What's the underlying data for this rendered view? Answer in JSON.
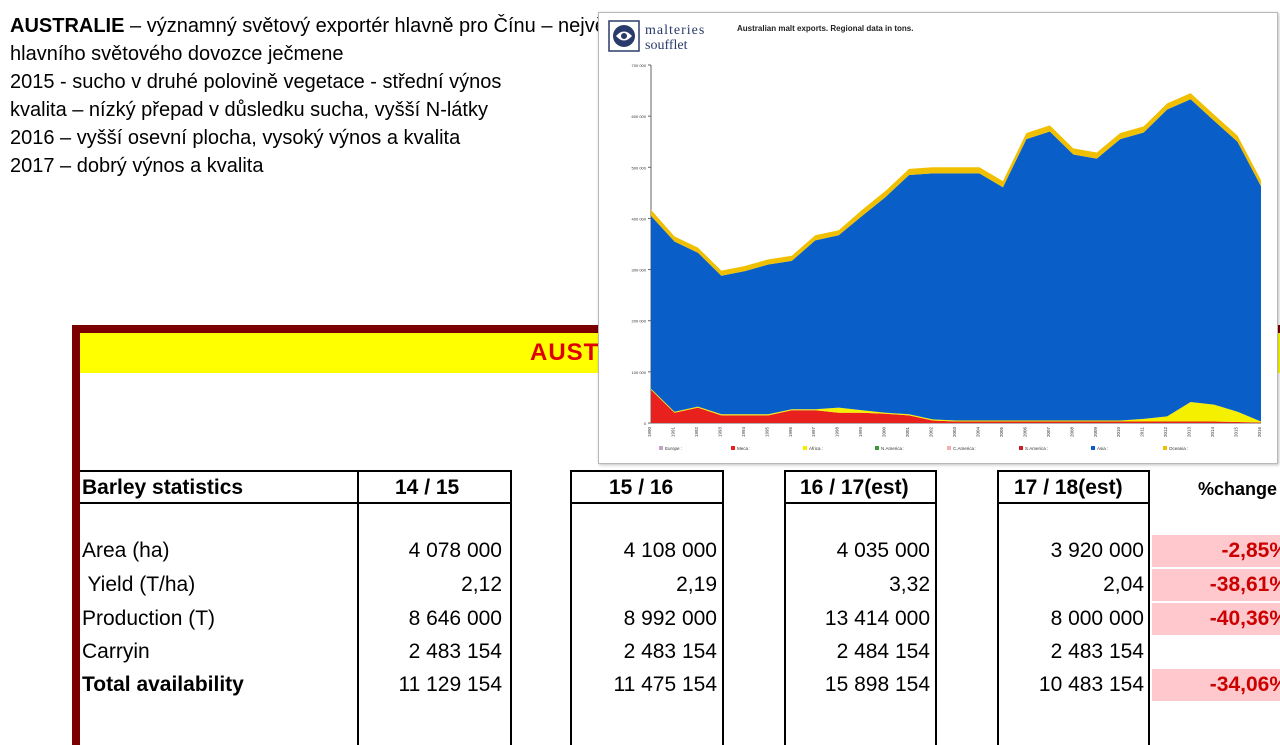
{
  "slide": {
    "line1_bold": "AUSTRALIE",
    "line1_rest": " – významný světový exportér hlavně pro Čínu – největšího",
    "line2": "hlavního světového dovozce ječmene",
    "line3": "2015 - sucho v druhé polovině vegetace - střední výnos",
    "line4": "kvalita – nízký přepad v důsledku sucha, vyšší N-látky",
    "line5": "2016 – vyšší osevní plocha, vysoký výnos a kvalita",
    "line6": "2017 – dobrý výnos a kvalita"
  },
  "table": {
    "title": "AUSTRALIE",
    "headers": [
      "Barley statistics",
      "14 / 15",
      "15 / 16",
      "16 / 17(est)",
      "17 / 18(est)",
      "%change"
    ],
    "rows": [
      {
        "label": "Area (ha)",
        "v1": "4 078 000",
        "v2": "4 108 000",
        "v3": "4 035 000",
        "v4": "3 920 000",
        "pct": "-2,85%",
        "bold": false
      },
      {
        "label": " Yield (T/ha)",
        "v1": "2,12",
        "v2": "2,19",
        "v3": "3,32",
        "v4": "2,04",
        "pct": "-38,61%",
        "bold": false
      },
      {
        "label": "Production (T)",
        "v1": "8 646 000",
        "v2": "8 992 000",
        "v3": "13 414 000",
        "v4": "8 000 000",
        "pct": "-40,36%",
        "bold": false
      },
      {
        "label": "Carryin",
        "v1": "2 483 154",
        "v2": "2 483 154",
        "v3": "2 484 154",
        "v4": "2 483 154",
        "pct": "",
        "bold": false
      },
      {
        "label": "Total availability",
        "v1": "11 129 154",
        "v2": "11 475 154",
        "v3": "15 898 154",
        "v4": "10 483 154",
        "pct": "-34,06%",
        "bold": true
      }
    ]
  },
  "logo": {
    "line1": "malteries",
    "line2": "soufflet"
  },
  "chart_data": {
    "type": "area",
    "stacked": true,
    "title": "Australian malt exports. Regional data in tons.",
    "x": [
      "1990",
      "1991",
      "1992",
      "1993",
      "1994",
      "1995",
      "1996",
      "1997",
      "1998",
      "1999",
      "2000",
      "2001",
      "2002",
      "2003",
      "2004",
      "2005",
      "2006",
      "2007",
      "2008",
      "2009",
      "2010",
      "2011",
      "2012",
      "2013",
      "2014",
      "2015",
      "2016"
    ],
    "ylim": [
      0,
      700000
    ],
    "yticks": [
      "0",
      "100 000",
      "200 000",
      "300 000",
      "400 000",
      "500 000",
      "600 000",
      "700 000"
    ],
    "legend_position": "bottom",
    "series": [
      {
        "name": "Europe :",
        "color": "#c8a0c8",
        "values": [
          0,
          0,
          0,
          0,
          0,
          0,
          0,
          0,
          0,
          0,
          0,
          0,
          0,
          0,
          0,
          0,
          0,
          0,
          0,
          0,
          0,
          0,
          0,
          0,
          0,
          0,
          0
        ]
      },
      {
        "name": "Meca :",
        "color": "#e8201e",
        "values": [
          65000,
          20000,
          30000,
          15000,
          15000,
          15000,
          25000,
          25000,
          20000,
          20000,
          18000,
          15000,
          5000,
          3000,
          3000,
          3000,
          3000,
          3000,
          3000,
          3000,
          3000,
          3000,
          3000,
          3000,
          3000,
          2000,
          1000
        ]
      },
      {
        "name": "Africa :",
        "color": "#f5f000",
        "values": [
          2000,
          2000,
          2000,
          2000,
          2000,
          2000,
          2000,
          2000,
          10000,
          5000,
          2000,
          2000,
          2000,
          2000,
          2000,
          2000,
          2000,
          2000,
          2000,
          2000,
          2000,
          5000,
          10000,
          38000,
          33000,
          20000,
          2000
        ]
      },
      {
        "name": "N.America :",
        "color": "#3a9a3a",
        "values": [
          0,
          0,
          0,
          0,
          0,
          0,
          0,
          0,
          0,
          0,
          0,
          0,
          0,
          0,
          0,
          0,
          0,
          0,
          0,
          0,
          0,
          0,
          0,
          0,
          0,
          0,
          0
        ]
      },
      {
        "name": "C.America :",
        "color": "#f0b0b0",
        "values": [
          0,
          0,
          0,
          0,
          0,
          0,
          0,
          0,
          0,
          0,
          0,
          0,
          0,
          0,
          0,
          0,
          0,
          0,
          0,
          0,
          0,
          0,
          0,
          0,
          0,
          0,
          0
        ]
      },
      {
        "name": "S.America :",
        "color": "#cc2020",
        "values": [
          0,
          0,
          0,
          0,
          0,
          0,
          0,
          0,
          0,
          0,
          0,
          0,
          0,
          0,
          0,
          0,
          0,
          0,
          0,
          0,
          0,
          0,
          0,
          0,
          0,
          0,
          0
        ]
      },
      {
        "name": "Asia :",
        "color": "#0a5ec8",
        "values": [
          338000,
          333000,
          301000,
          271000,
          280000,
          293000,
          290000,
          330000,
          337000,
          380000,
          422000,
          468000,
          481000,
          483000,
          483000,
          456000,
          550000,
          565000,
          520000,
          512000,
          550000,
          560000,
          600000,
          592000,
          555000,
          528000,
          460000
        ]
      },
      {
        "name": "Oceania :",
        "color": "#f0c000",
        "values": [
          12000,
          10000,
          10000,
          10000,
          10000,
          10000,
          10000,
          10000,
          10000,
          12000,
          12000,
          12000,
          12000,
          12000,
          12000,
          12000,
          12000,
          12000,
          12000,
          12000,
          12000,
          12000,
          12000,
          12000,
          12000,
          12000,
          12000
        ]
      }
    ]
  }
}
